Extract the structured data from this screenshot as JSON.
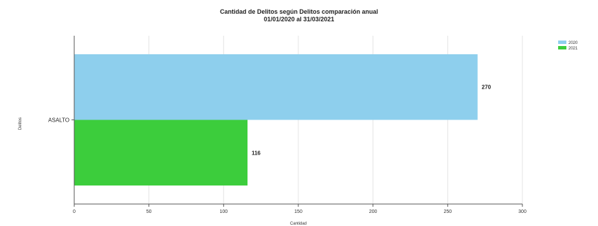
{
  "chart_data": {
    "type": "bar",
    "orientation": "horizontal",
    "title": "Cantidad de Delitos según Delitos comparación anual",
    "subtitle": "01/01/2020 al 31/03/2021",
    "categories": [
      "ASALTO"
    ],
    "series": [
      {
        "name": "2020",
        "values": [
          270
        ],
        "labels": [
          "270"
        ],
        "color": "#8ecfed"
      },
      {
        "name": "2021",
        "values": [
          116
        ],
        "labels": [
          "116"
        ],
        "color": "#3ccd3c"
      }
    ],
    "xlabel": "Cantidad",
    "ylabel": "Delitos",
    "xlim": [
      0,
      300
    ],
    "xticks": [
      0,
      50,
      100,
      150,
      200,
      250,
      300
    ],
    "grid": true,
    "legend_position": "top-right"
  }
}
